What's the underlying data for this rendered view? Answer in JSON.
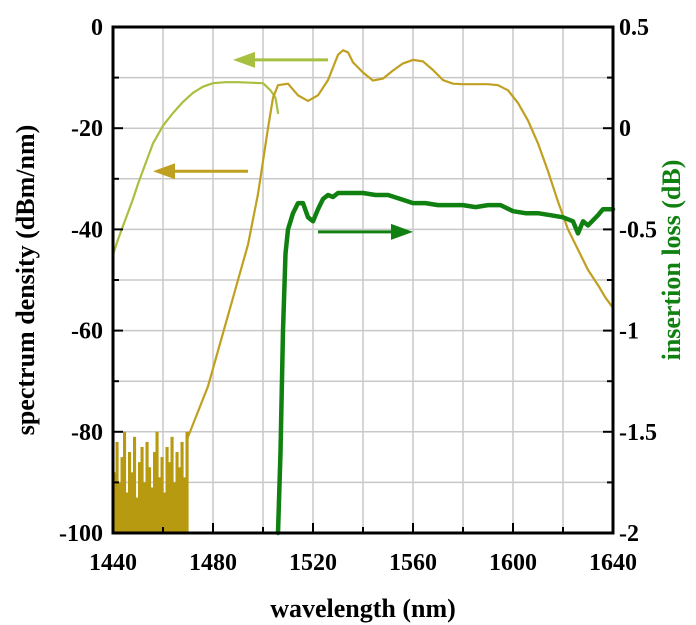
{
  "chart_data": {
    "type": "line",
    "xlabel": "wavelength (nm)",
    "ylabel": "spectrum density (dBm/nm)",
    "y2label": "insertion loss (dB)",
    "xlim": [
      1440,
      1640
    ],
    "ylim": [
      -100,
      0
    ],
    "y2lim": [
      -2,
      0.5
    ],
    "x_ticks": [
      1440,
      1480,
      1520,
      1560,
      1600,
      1640
    ],
    "x_tick_labels": [
      "1440",
      "1480",
      "1520",
      "1560",
      "1600",
      "1640"
    ],
    "y_ticks": [
      0,
      -20,
      -40,
      -60,
      -80,
      -100
    ],
    "y_tick_labels": [
      "0",
      "-20",
      "-40",
      "-60",
      "-80",
      "-100"
    ],
    "y2_ticks": [
      0.5,
      0,
      -0.5,
      -1,
      -1.5,
      -2
    ],
    "y2_tick_labels": [
      "0.5",
      "0",
      "-0.5",
      "-1",
      "-1.5",
      "-2"
    ],
    "grid": true,
    "legend": "none",
    "series": [
      {
        "axis": "left",
        "color": "#a8c040",
        "points": [
          [
            1440,
            -45
          ],
          [
            1442,
            -42
          ],
          [
            1445,
            -38
          ],
          [
            1448,
            -34
          ],
          [
            1450,
            -31
          ],
          [
            1453,
            -27
          ],
          [
            1456,
            -23
          ],
          [
            1460,
            -19.5
          ],
          [
            1464,
            -17
          ],
          [
            1468,
            -14.8
          ],
          [
            1472,
            -13
          ],
          [
            1476,
            -11.8
          ],
          [
            1480,
            -11.1
          ],
          [
            1485,
            -10.9
          ],
          [
            1490,
            -10.9
          ],
          [
            1495,
            -11
          ],
          [
            1500,
            -11.1
          ],
          [
            1503,
            -12.5
          ],
          [
            1505,
            -14
          ],
          [
            1506,
            -17
          ]
        ]
      },
      {
        "axis": "left",
        "color": "#c0a020",
        "points": [
          [
            1470,
            -81
          ],
          [
            1474,
            -76
          ],
          [
            1478,
            -71
          ],
          [
            1482,
            -64
          ],
          [
            1486,
            -57
          ],
          [
            1490,
            -50
          ],
          [
            1494,
            -43
          ],
          [
            1498,
            -33
          ],
          [
            1502,
            -20
          ],
          [
            1504,
            -14
          ],
          [
            1506,
            -11.5
          ],
          [
            1510,
            -11.2
          ],
          [
            1514,
            -13.5
          ],
          [
            1518,
            -14.6
          ],
          [
            1522,
            -13.5
          ],
          [
            1526,
            -10.5
          ],
          [
            1528,
            -8
          ],
          [
            1530,
            -5.5
          ],
          [
            1532,
            -4.6
          ],
          [
            1534,
            -5
          ],
          [
            1536,
            -7
          ],
          [
            1540,
            -9
          ],
          [
            1544,
            -10.6
          ],
          [
            1548,
            -10.2
          ],
          [
            1552,
            -8.6
          ],
          [
            1556,
            -7.2
          ],
          [
            1560,
            -6.5
          ],
          [
            1564,
            -6.8
          ],
          [
            1568,
            -8.5
          ],
          [
            1572,
            -10.5
          ],
          [
            1576,
            -11.2
          ],
          [
            1580,
            -11.3
          ],
          [
            1585,
            -11.3
          ],
          [
            1590,
            -11.3
          ],
          [
            1594,
            -11.5
          ],
          [
            1598,
            -12.5
          ],
          [
            1602,
            -15
          ],
          [
            1606,
            -18.5
          ],
          [
            1610,
            -23
          ],
          [
            1614,
            -28.5
          ],
          [
            1618,
            -34.5
          ],
          [
            1622,
            -40
          ],
          [
            1626,
            -44
          ],
          [
            1630,
            -48
          ],
          [
            1634,
            -51
          ],
          [
            1637,
            -53.5
          ],
          [
            1640,
            -55.5
          ]
        ]
      },
      {
        "axis": "left",
        "color": "#b89a10",
        "style": "noise-floor",
        "points": [
          [
            1440,
            -88
          ],
          [
            1441,
            -82
          ],
          [
            1442,
            -90
          ],
          [
            1443,
            -85
          ],
          [
            1444,
            -80
          ],
          [
            1445,
            -92
          ],
          [
            1446,
            -84
          ],
          [
            1447,
            -88
          ],
          [
            1448,
            -81
          ],
          [
            1449,
            -93
          ],
          [
            1450,
            -86
          ],
          [
            1451,
            -83
          ],
          [
            1452,
            -90
          ],
          [
            1453,
            -82
          ],
          [
            1454,
            -87
          ],
          [
            1455,
            -91
          ],
          [
            1456,
            -84
          ],
          [
            1457,
            -80
          ],
          [
            1458,
            -89
          ],
          [
            1459,
            -85
          ],
          [
            1460,
            -92
          ],
          [
            1461,
            -83
          ],
          [
            1462,
            -86
          ],
          [
            1463,
            -81
          ],
          [
            1464,
            -90
          ],
          [
            1465,
            -84
          ],
          [
            1466,
            -87
          ],
          [
            1467,
            -82
          ],
          [
            1468,
            -89
          ],
          [
            1469,
            -80
          ],
          [
            1470,
            -86
          ]
        ]
      },
      {
        "axis": "right",
        "color": "#108010",
        "points": [
          [
            1506,
            -2
          ],
          [
            1507,
            -1.6
          ],
          [
            1508,
            -1.0
          ],
          [
            1509,
            -0.62
          ],
          [
            1510,
            -0.5
          ],
          [
            1512,
            -0.42
          ],
          [
            1514,
            -0.37
          ],
          [
            1516,
            -0.37
          ],
          [
            1518,
            -0.44
          ],
          [
            1520,
            -0.46
          ],
          [
            1522,
            -0.4
          ],
          [
            1524,
            -0.35
          ],
          [
            1526,
            -0.33
          ],
          [
            1528,
            -0.34
          ],
          [
            1530,
            -0.32
          ],
          [
            1535,
            -0.32
          ],
          [
            1540,
            -0.32
          ],
          [
            1545,
            -0.33
          ],
          [
            1550,
            -0.33
          ],
          [
            1555,
            -0.35
          ],
          [
            1560,
            -0.37
          ],
          [
            1565,
            -0.37
          ],
          [
            1570,
            -0.38
          ],
          [
            1575,
            -0.38
          ],
          [
            1580,
            -0.38
          ],
          [
            1585,
            -0.39
          ],
          [
            1590,
            -0.38
          ],
          [
            1595,
            -0.38
          ],
          [
            1600,
            -0.41
          ],
          [
            1605,
            -0.42
          ],
          [
            1610,
            -0.42
          ],
          [
            1615,
            -0.43
          ],
          [
            1620,
            -0.44
          ],
          [
            1624,
            -0.46
          ],
          [
            1626,
            -0.52
          ],
          [
            1628,
            -0.46
          ],
          [
            1630,
            -0.48
          ],
          [
            1634,
            -0.43
          ],
          [
            1636,
            -0.4
          ],
          [
            1640,
            -0.4
          ]
        ]
      }
    ],
    "annotations": [
      {
        "type": "arrow",
        "direction": "left",
        "color": "#a8c040",
        "x_from": 1526,
        "x_to": 1488,
        "y": -6.5
      },
      {
        "type": "arrow",
        "direction": "left",
        "color": "#c0a020",
        "x_from": 1494,
        "x_to": 1456,
        "y": -28.5
      },
      {
        "type": "arrow",
        "direction": "right",
        "color": "#108010",
        "x_from": 1522,
        "x_to": 1560,
        "y": -40.5
      }
    ]
  }
}
